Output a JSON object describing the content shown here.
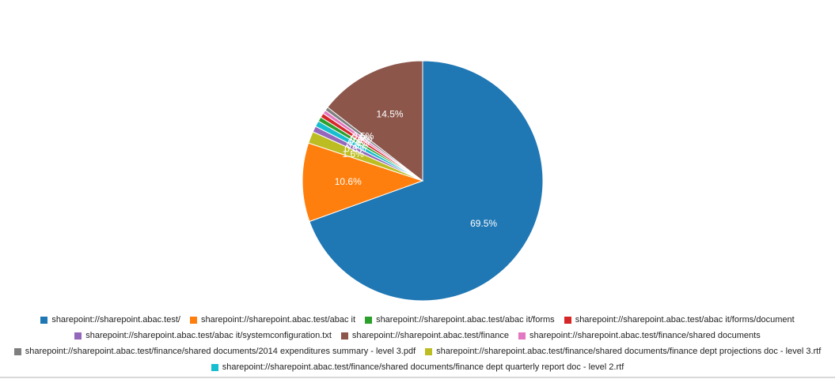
{
  "chart_data": {
    "type": "pie",
    "title": "",
    "series": [
      {
        "name": "sharepoint://sharepoint.abac.test/",
        "value": 69.5,
        "label": "69.5%",
        "color": "#1f77b4"
      },
      {
        "name": "sharepoint://sharepoint.abac.test/abac it",
        "value": 10.6,
        "label": "10.6%",
        "color": "#ff7f0e"
      },
      {
        "name": "sharepoint://sharepoint.abac.test/finance/shared documents/finance dept projections doc - level 3.rtf",
        "value": 1.6,
        "label": "1.6%",
        "color": "#bcbd22"
      },
      {
        "name": "sharepoint://sharepoint.abac.test/abac it/systemconfiguration.txt",
        "value": 0.8,
        "label": "0.8%",
        "color": "#9467bd"
      },
      {
        "name": "sharepoint://sharepoint.abac.test/finance/shared documents/finance dept quarterly report doc - level 2.rtf",
        "value": 0.8,
        "label": "0.8%",
        "color": "#17becf"
      },
      {
        "name": "sharepoint://sharepoint.abac.test/abac it/forms",
        "value": 0.6,
        "label": "0.6%",
        "color": "#2ca02c"
      },
      {
        "name": "sharepoint://sharepoint.abac.test/abac it/forms/document",
        "value": 0.6,
        "label": "0.6%",
        "color": "#d62728"
      },
      {
        "name": "sharepoint://sharepoint.abac.test/finance/shared documents",
        "value": 0.5,
        "label": "0.5%",
        "color": "#e377c2"
      },
      {
        "name": "sharepoint://sharepoint.abac.test/finance/shared documents/2014 expenditures summary - level 3.pdf",
        "value": 0.5,
        "label": "0.5%",
        "color": "#7f7f7f"
      },
      {
        "name": "sharepoint://sharepoint.abac.test/finance",
        "value": 14.5,
        "label": "14.5%",
        "color": "#8c564b"
      }
    ],
    "legend_rows": [
      [
        0,
        1,
        5,
        6
      ],
      [
        3,
        9,
        7
      ],
      [
        8,
        2
      ],
      [
        4
      ]
    ],
    "legend_position": "bottom"
  }
}
